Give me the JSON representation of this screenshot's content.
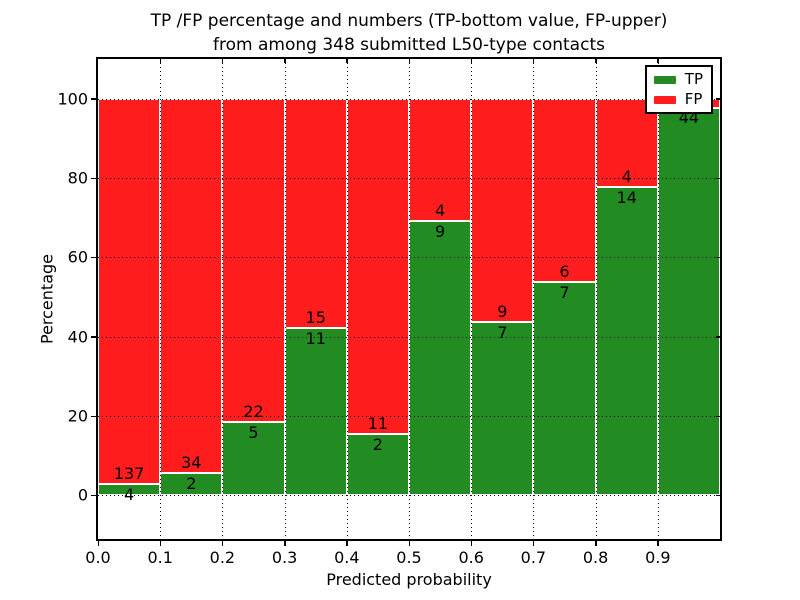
{
  "title": {
    "line1": "TP /FP percentage and numbers (TP-bottom value, FP-upper)",
    "line2": "from among 348 submitted L50-type contacts"
  },
  "chart_data": {
    "type": "bar",
    "subtype": "stacked-percentage",
    "title": "TP /FP percentage and numbers (TP-bottom value, FP-upper) from among 348 submitted L50-type contacts",
    "xlabel": "Predicted probability",
    "ylabel": "Percentage",
    "xlim": [
      0.0,
      1.0
    ],
    "ylim": [
      -11,
      110
    ],
    "grid": "dotted black, drawn over bars",
    "legend_position": "upper right",
    "total_contacts": 348,
    "x_tick_labels": [
      "0.0",
      "0.1",
      "0.2",
      "0.3",
      "0.4",
      "0.5",
      "0.6",
      "0.7",
      "0.8",
      "0.9"
    ],
    "y_ticks": [
      {
        "value": 0,
        "label": "0"
      },
      {
        "value": 20,
        "label": "20"
      },
      {
        "value": 40,
        "label": "40"
      },
      {
        "value": 60,
        "label": "60"
      },
      {
        "value": 80,
        "label": "80"
      },
      {
        "value": 100,
        "label": "100"
      }
    ],
    "series": [
      {
        "name": "TP",
        "color": "#228B22"
      },
      {
        "name": "FP",
        "color": "#FF1D1D"
      }
    ],
    "bins": [
      {
        "x_start": 0.0,
        "x_end": 0.1,
        "tp": 4,
        "fp": 137,
        "fp_label_visible": true
      },
      {
        "x_start": 0.1,
        "x_end": 0.2,
        "tp": 2,
        "fp": 34,
        "fp_label_visible": true
      },
      {
        "x_start": 0.2,
        "x_end": 0.3,
        "tp": 5,
        "fp": 22,
        "fp_label_visible": true
      },
      {
        "x_start": 0.3,
        "x_end": 0.4,
        "tp": 11,
        "fp": 15,
        "fp_label_visible": true
      },
      {
        "x_start": 0.4,
        "x_end": 0.5,
        "tp": 2,
        "fp": 11,
        "fp_label_visible": true
      },
      {
        "x_start": 0.5,
        "x_end": 0.6,
        "tp": 9,
        "fp": 4,
        "fp_label_visible": true
      },
      {
        "x_start": 0.6,
        "x_end": 0.7,
        "tp": 7,
        "fp": 9,
        "fp_label_visible": true
      },
      {
        "x_start": 0.7,
        "x_end": 0.8,
        "tp": 7,
        "fp": 6,
        "fp_label_visible": true
      },
      {
        "x_start": 0.8,
        "x_end": 0.9,
        "tp": 14,
        "fp": 4,
        "fp_label_visible": true
      },
      {
        "x_start": 0.9,
        "x_end": 1.0,
        "tp": 44,
        "fp": 1,
        "fp_label_visible": false
      }
    ]
  },
  "legend": {
    "items": [
      {
        "label": "TP",
        "color": "#228B22"
      },
      {
        "label": "FP",
        "color": "#FF1D1D"
      }
    ]
  },
  "axis": {
    "xlabel": "Predicted probability",
    "ylabel": "Percentage"
  }
}
